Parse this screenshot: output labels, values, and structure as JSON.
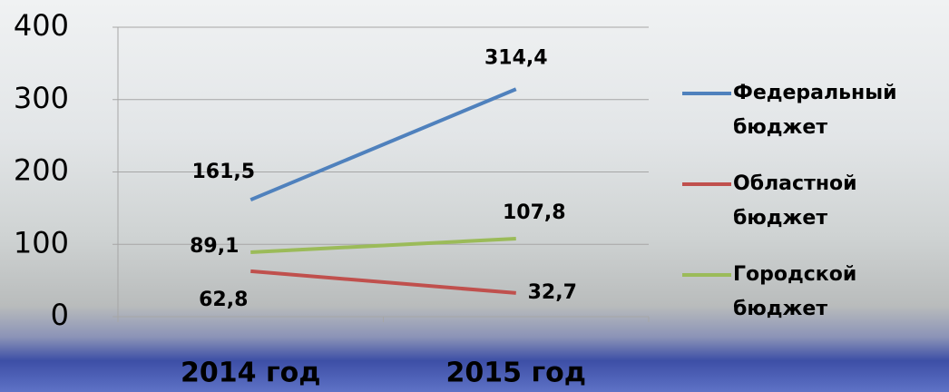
{
  "chart_data": {
    "type": "line",
    "categories": [
      "2014 год",
      "2015 год"
    ],
    "series": [
      {
        "name": "Федеральный бюджет",
        "color": "#4f81bd",
        "values": [
          161.5,
          314.4
        ],
        "value_labels": [
          "161,5",
          "314,4"
        ]
      },
      {
        "name": "Областной бюджет",
        "color": "#c0504d",
        "values": [
          62.8,
          32.7
        ],
        "value_labels": [
          "62,8",
          "32,7"
        ]
      },
      {
        "name": "Городской бюджет",
        "color": "#9bbb59",
        "values": [
          89.1,
          107.8
        ],
        "value_labels": [
          "89,1",
          "107,8"
        ]
      }
    ],
    "ylim": [
      0,
      400
    ],
    "yticks": [
      0,
      100,
      200,
      300,
      400
    ],
    "grid": true,
    "legend": "right"
  }
}
